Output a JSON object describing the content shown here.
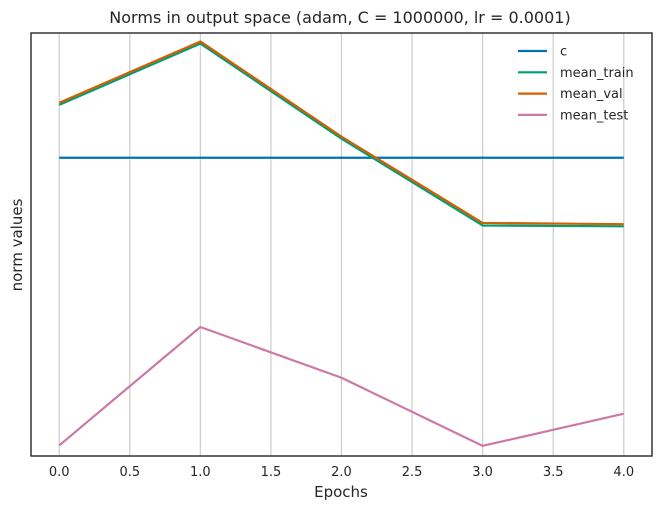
{
  "chart_data": {
    "type": "line",
    "title": "Norms in output space (adam, C = 1000000, lr = 0.0001)",
    "xlabel": "Epochs",
    "ylabel": "norm values",
    "x": [
      0,
      1,
      2,
      3,
      4
    ],
    "xlim": [
      -0.2,
      4.2
    ],
    "ylim": [
      0.0,
      1.0
    ],
    "xticks": [
      "0.0",
      "0.5",
      "1.0",
      "1.5",
      "2.0",
      "2.5",
      "3.0",
      "3.5",
      "4.0"
    ],
    "xtick_values": [
      0,
      0.5,
      1,
      1.5,
      2,
      2.5,
      3,
      3.5,
      4
    ],
    "y_tick_labels_shown": false,
    "grid": "vertical",
    "legend_position": "top-right",
    "series": [
      {
        "name": "c",
        "color": "#0072b2",
        "values": [
          0.705,
          0.705,
          0.705,
          0.705,
          0.705
        ]
      },
      {
        "name": "mean_train",
        "color": "#009e73",
        "values": [
          0.83,
          0.975,
          0.75,
          0.545,
          0.543
        ]
      },
      {
        "name": "mean_val",
        "color": "#d55e00",
        "values": [
          0.835,
          0.98,
          0.755,
          0.551,
          0.548
        ]
      },
      {
        "name": "mean_test",
        "color": "#cc79a7",
        "values": [
          0.025,
          0.305,
          0.185,
          0.024,
          0.1
        ]
      }
    ]
  }
}
